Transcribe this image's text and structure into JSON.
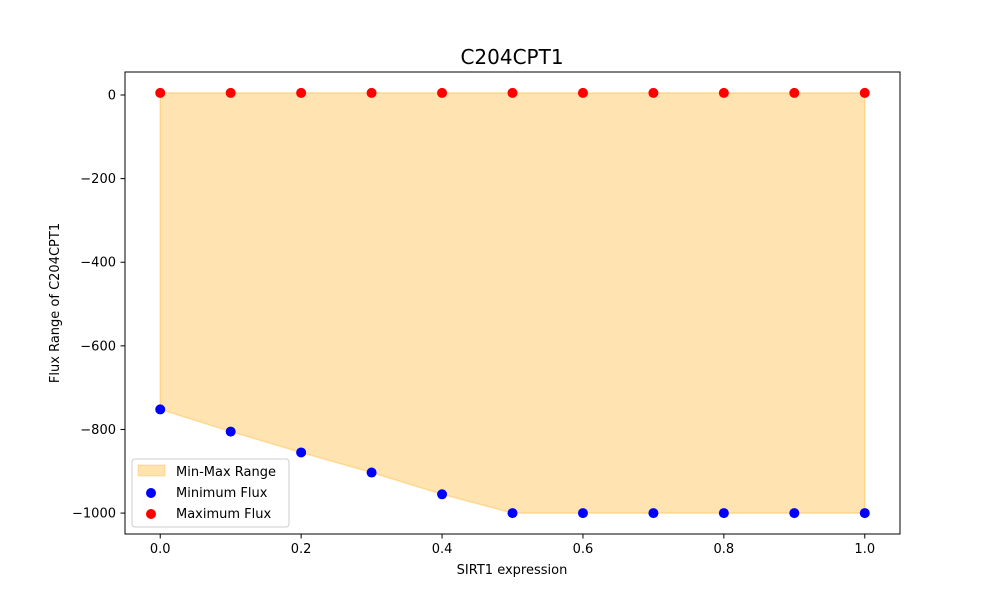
{
  "chart_data": {
    "type": "scatter",
    "title": "C204CPT1",
    "xlabel": "SIRT1 expression",
    "ylabel": "Flux Range of C204CPT1",
    "xlim": [
      -0.05,
      1.05
    ],
    "ylim": [
      -1050,
      55
    ],
    "xticks": [
      0.0,
      0.2,
      0.4,
      0.6,
      0.8,
      1.0
    ],
    "xtick_labels": [
      "0.0",
      "0.2",
      "0.4",
      "0.6",
      "0.8",
      "1.0"
    ],
    "yticks": [
      0,
      -200,
      -400,
      -600,
      -800,
      -1000
    ],
    "ytick_labels": [
      "0",
      "−200",
      "−400",
      "−600",
      "−800",
      "−1000"
    ],
    "grid": false,
    "legend_position": "lower-left",
    "x": [
      0.0,
      0.1,
      0.2,
      0.3,
      0.4,
      0.5,
      0.6,
      0.7,
      0.8,
      0.9,
      1.0
    ],
    "series": [
      {
        "name": "Minimum Flux",
        "kind": "scatter",
        "color": "#0000ff",
        "values": [
          -752,
          -805,
          -855,
          -903,
          -955,
          -1000,
          -1000,
          -1000,
          -1000,
          -1000,
          -1000
        ]
      },
      {
        "name": "Maximum Flux",
        "kind": "scatter",
        "color": "#ff0000",
        "values": [
          5,
          5,
          5,
          5,
          5,
          5,
          5,
          5,
          5,
          5,
          5
        ]
      }
    ],
    "fill": {
      "name": "Min-Max Range",
      "color": "#ffa500",
      "opacity": 0.3,
      "lower_series": "Minimum Flux",
      "upper_series": "Maximum Flux"
    }
  }
}
